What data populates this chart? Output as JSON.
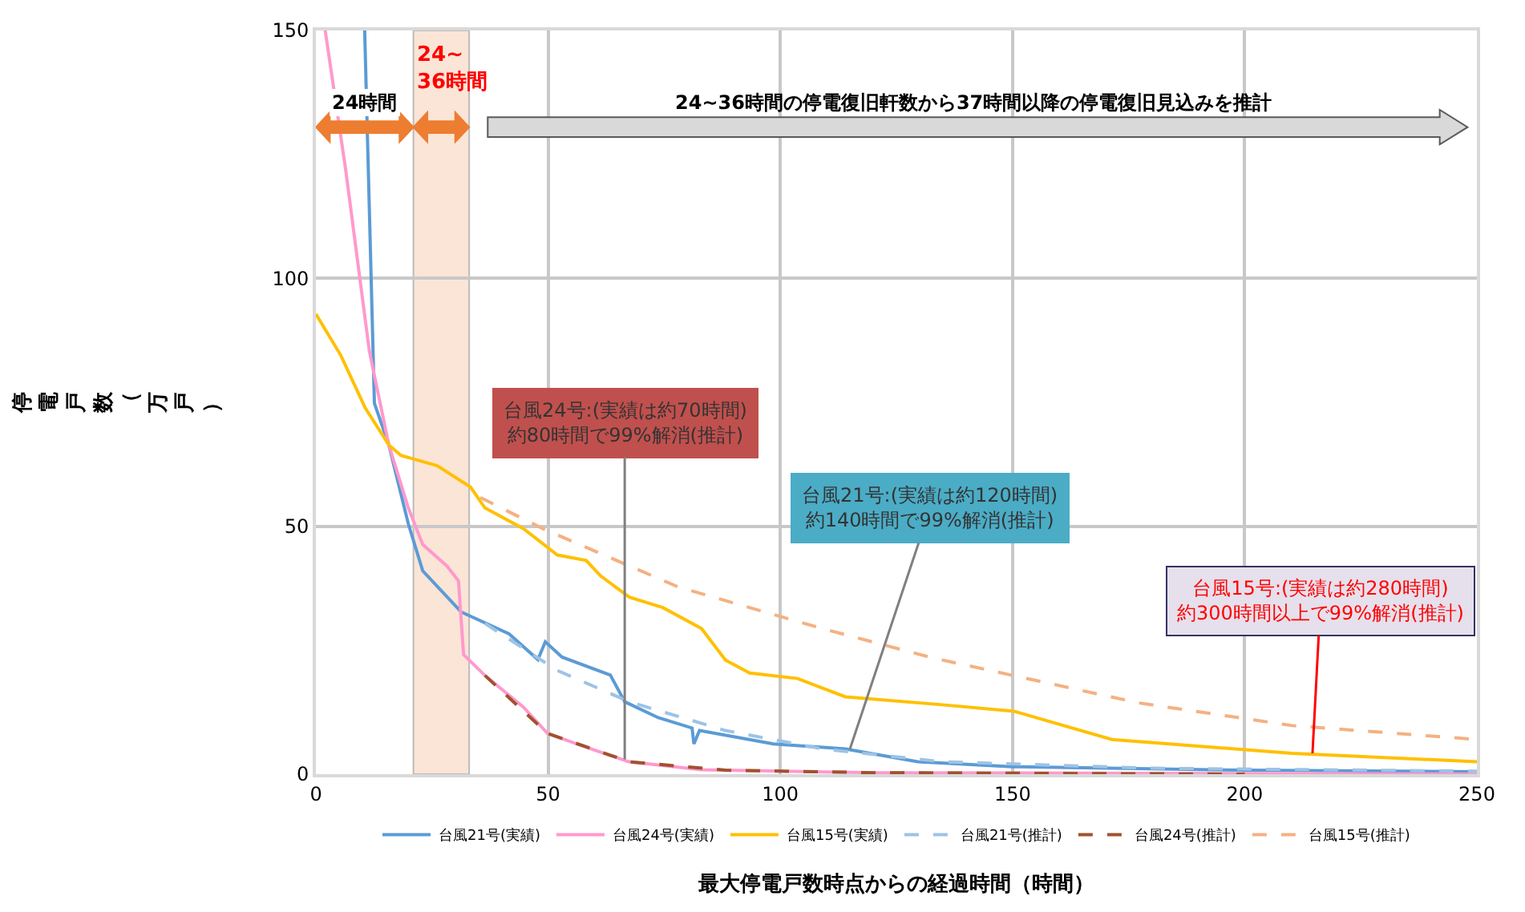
{
  "chart_data": {
    "type": "line",
    "xlabel": "最大停電戸数時点からの経過時間（時間）",
    "ylabel": "停電戸数（万戸）",
    "xlim": [
      0,
      250
    ],
    "xticks": [
      0,
      50,
      100,
      150,
      200,
      250
    ],
    "ylim": [
      0,
      150
    ],
    "yticks": [
      0,
      50,
      100,
      150
    ],
    "grid": true,
    "legend": "bottom",
    "marker": "none",
    "series": [
      {
        "name": "台風21号(実績)",
        "color": "#5b9bd5",
        "line_style": "solid",
        "x": [
          10.5,
          12.6,
          15.7,
          19.9,
          23,
          31.3,
          41.6,
          47.8,
          49.4,
          53,
          63.4,
          66.5,
          73.7,
          81,
          81.4,
          82.6,
          98.5,
          114,
          129.6,
          150,
          200,
          250
        ],
        "values": [
          150,
          74.8,
          66.4,
          50.5,
          41,
          32.7,
          28.3,
          23.1,
          26.7,
          23.6,
          20,
          14.6,
          11.4,
          9.3,
          6.1,
          8.8,
          6.1,
          5.1,
          2.5,
          1.5,
          0.8,
          0.5
        ]
      },
      {
        "name": "台風24号(実績)",
        "color": "#ff99cc",
        "line_style": "solid",
        "x": [
          2,
          6.4,
          11.5,
          15.7,
          19.9,
          23,
          28.2,
          30.7,
          31.8,
          36.4,
          44.7,
          49.9,
          59.2,
          67.4,
          83,
          120,
          250
        ],
        "values": [
          150,
          122,
          85.4,
          66.4,
          53.7,
          46.3,
          42,
          39,
          24.1,
          19.9,
          13.5,
          8.2,
          5.1,
          2.5,
          0.9,
          0.3,
          0
        ]
      },
      {
        "name": "台風15号(実績)",
        "color": "#ffc000",
        "line_style": "solid",
        "x": [
          0,
          5.4,
          10.6,
          15.7,
          18.3,
          26.1,
          33.3,
          36.4,
          44.7,
          52,
          58.2,
          61.3,
          67.5,
          74.7,
          83,
          88.2,
          93.4,
          103.7,
          114,
          134.8,
          150.3,
          171.4,
          210.2,
          250
        ],
        "values": [
          92.8,
          84.4,
          73.9,
          66.4,
          64.3,
          62.2,
          57.9,
          53.7,
          49.5,
          44.2,
          43.1,
          40,
          35.7,
          33.6,
          29.4,
          23,
          20.4,
          19.3,
          15.6,
          14,
          12.7,
          7,
          4.2,
          2.5
        ]
      },
      {
        "name": "台風21号(推計)",
        "color": "#9dc3e6",
        "line_style": "dashed",
        "x": [
          36.4,
          52,
          67.5,
          88.2,
          109,
          135,
          180,
          250
        ],
        "values": [
          30.4,
          20.9,
          14.6,
          8.8,
          5.1,
          2.5,
          1.2,
          0.6
        ]
      },
      {
        "name": "台風24号(推計)",
        "color": "#a0522d",
        "line_style": "dashed",
        "x": [
          36.4,
          49.9,
          67.5,
          88.2,
          120,
          200
        ],
        "values": [
          19.9,
          8.2,
          2.5,
          0.8,
          0.3,
          0
        ]
      },
      {
        "name": "台風15号(推計)",
        "color": "#f4b183",
        "line_style": "dashed",
        "x": [
          35.4,
          48.9,
          77.9,
          108.9,
          132.6,
          177,
          210.2,
          250
        ],
        "values": [
          55.8,
          49.5,
          37.8,
          29.4,
          23.5,
          14.4,
          9.8,
          7
        ]
      }
    ],
    "bands": [
      {
        "axis": "x",
        "from": 21,
        "to": 33,
        "label": "24~\n36時間",
        "color": "#fbe5d6"
      }
    ],
    "annotations": [
      "24時間",
      "24~36時間の停電復旧軒数から37時間以降の停電復旧見込みを推計",
      {
        "text": "台風24号:(実績は約70時間)\n約80時間で99%解消(推計)",
        "x": 66.5,
        "y": 3
      },
      {
        "text": "台風21号:(実績は約120時間)\n約140時間で99%解消(推計)",
        "x": 115,
        "y": 5.1
      },
      {
        "text": "台風15号:(実績は約280時間)\n約300時間以上で99%解消(推計)",
        "x": 214.6,
        "y": 4.2
      }
    ]
  }
}
